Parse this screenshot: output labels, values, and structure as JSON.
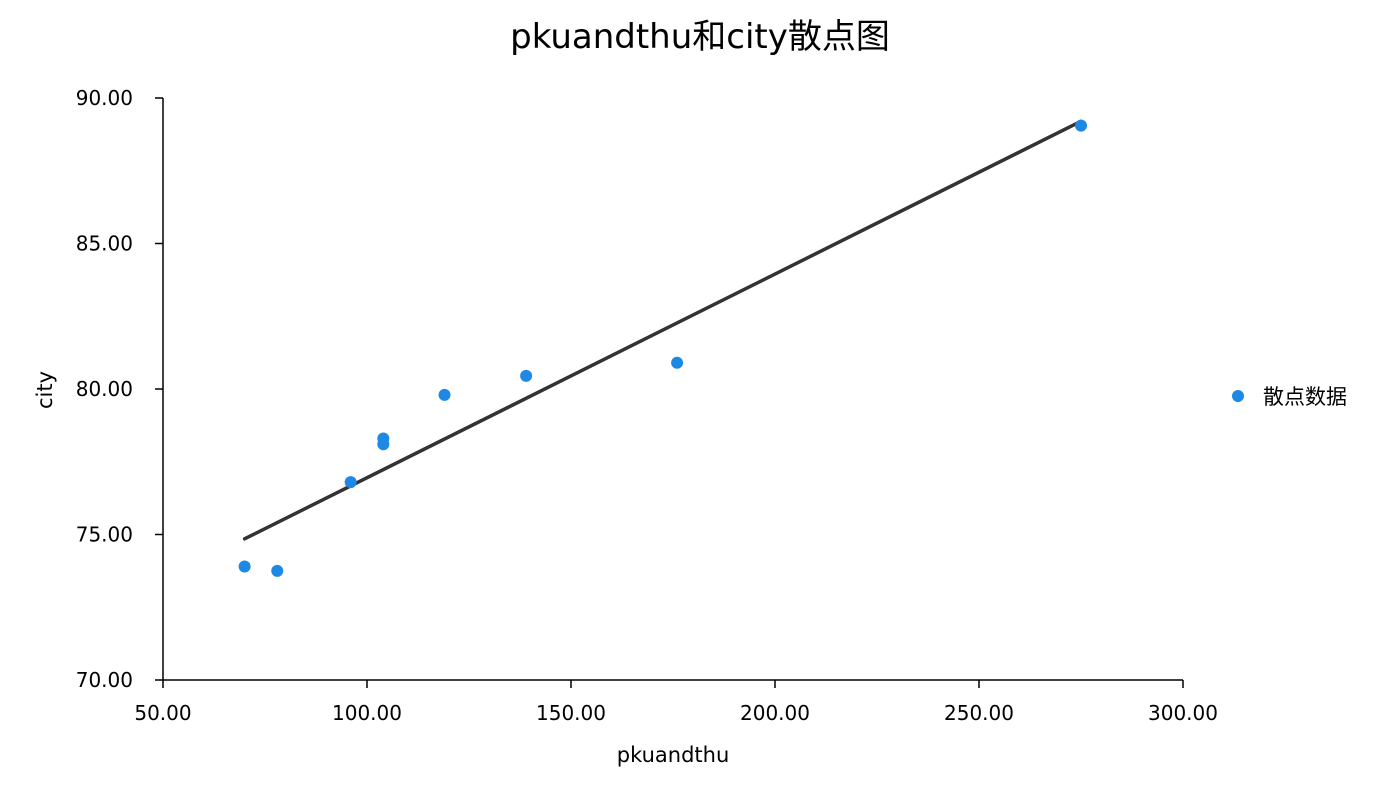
{
  "chart_data": {
    "type": "scatter",
    "title": "pkuandthu和city散点图",
    "xlabel": "pkuandthu",
    "ylabel": "city",
    "xlim": [
      50,
      300
    ],
    "ylim": [
      70,
      90
    ],
    "xticks": [
      50,
      100,
      150,
      200,
      250,
      300
    ],
    "yticks": [
      70,
      75,
      80,
      85,
      90
    ],
    "xtick_labels": [
      "50.00",
      "100.00",
      "150.00",
      "200.00",
      "250.00",
      "300.00"
    ],
    "ytick_labels": [
      "70.00",
      "75.00",
      "80.00",
      "85.00",
      "90.00"
    ],
    "grid": false,
    "legend_position": "right",
    "series": [
      {
        "name": "散点数据",
        "color": "#1e88e5",
        "x": [
          70,
          78,
          96,
          104,
          104,
          119,
          139,
          176,
          275
        ],
        "y": [
          73.9,
          73.75,
          76.8,
          78.1,
          78.3,
          79.8,
          80.45,
          80.9,
          89.05
        ]
      }
    ],
    "trendline": {
      "color": "#333333",
      "x": [
        70,
        275
      ],
      "y": [
        74.85,
        89.2
      ]
    }
  }
}
